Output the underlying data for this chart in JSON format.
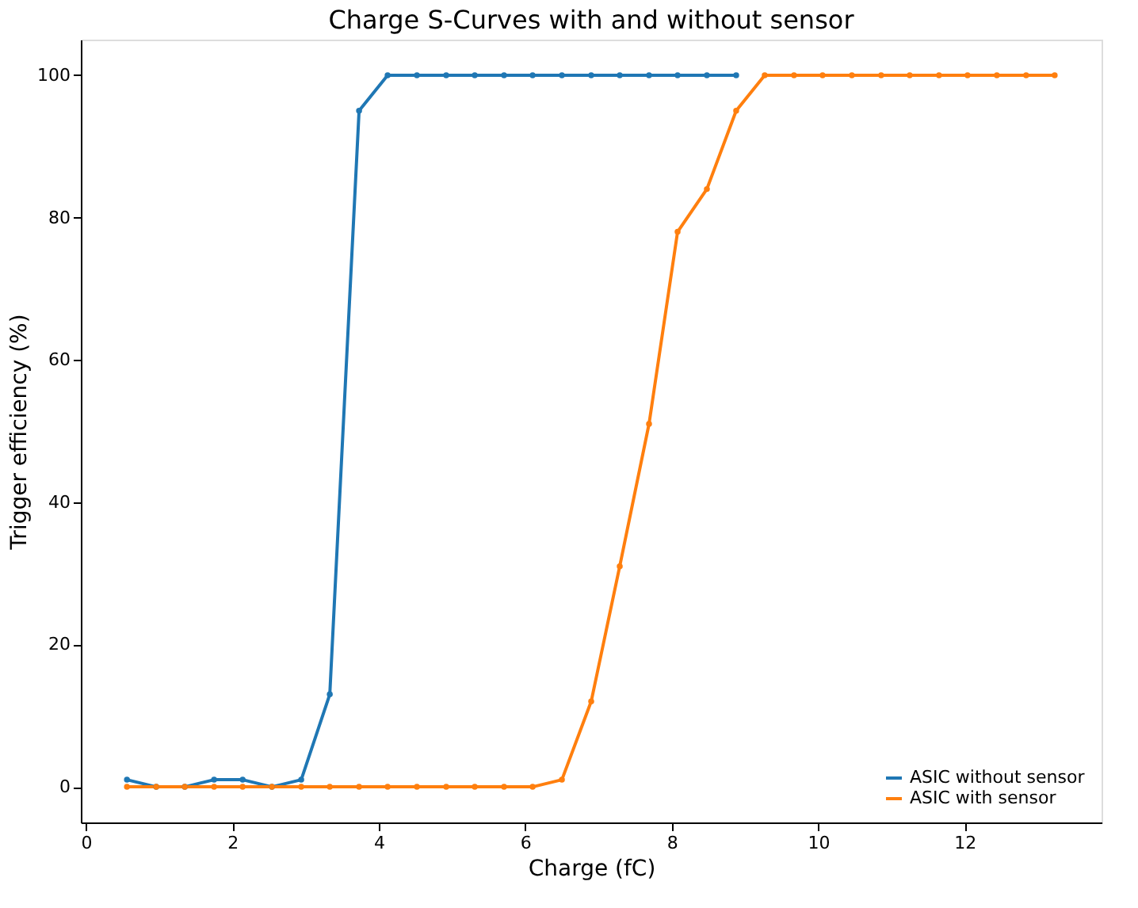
{
  "chart_data": {
    "type": "line",
    "title": "Charge S-Curves with and without sensor",
    "xlabel": "Charge (fC)",
    "ylabel": "Trigger efficiency (%)",
    "x": [
      0.56,
      0.96,
      1.35,
      1.75,
      2.14,
      2.54,
      2.94,
      3.33,
      3.73,
      4.12,
      4.52,
      4.92,
      5.31,
      5.71,
      6.1,
      6.5,
      6.9,
      7.29,
      7.69,
      8.08,
      8.48,
      8.88,
      9.27,
      9.67,
      10.06,
      10.46,
      10.86,
      11.25,
      11.65,
      12.04,
      12.44,
      12.84,
      13.23
    ],
    "series": [
      {
        "name": "ASIC without sensor",
        "color": "#1f77b4",
        "values": [
          1,
          0,
          0,
          1,
          1,
          0,
          1,
          13,
          95,
          100,
          100,
          100,
          100,
          100,
          100,
          100,
          100,
          100,
          100,
          100,
          100,
          100,
          null,
          null,
          null,
          null,
          null,
          null,
          null,
          null,
          null,
          null,
          null
        ]
      },
      {
        "name": "ASIC with sensor",
        "color": "#ff7f0e",
        "values": [
          0,
          0,
          0,
          0,
          0,
          0,
          0,
          0,
          0,
          0,
          0,
          0,
          0,
          0,
          0,
          1,
          12,
          31,
          51,
          78,
          84,
          95,
          100,
          100,
          100,
          100,
          100,
          100,
          100,
          100,
          100,
          100,
          100
        ]
      }
    ],
    "xlim": [
      -0.07,
      13.87
    ],
    "xticks": [
      0,
      2,
      4,
      6,
      8,
      10,
      12
    ],
    "ylim": [
      -5,
      105
    ],
    "yticks": [
      0,
      20,
      40,
      60,
      80,
      100
    ],
    "grid": false,
    "legend": "bottom right",
    "marker": "circle",
    "line_style": "solid"
  }
}
